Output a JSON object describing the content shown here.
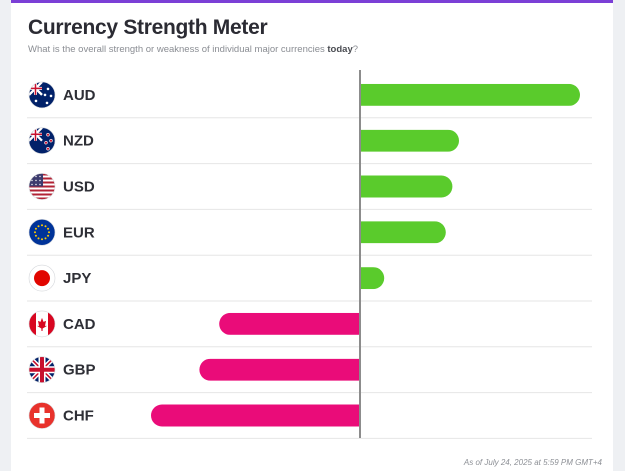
{
  "header": {
    "title": "Currency Strength Meter",
    "subtitle_prefix": "What is the overall strength or weakness of individual major currencies ",
    "subtitle_emphasis": "today",
    "subtitle_suffix": "?"
  },
  "footer": {
    "timestamp": "As of July 24, 2025 at 5:59 PM GMT+4"
  },
  "colors": {
    "positive": "#5acb2c",
    "negative": "#ea0c79",
    "axis": "#8c8c8c",
    "divider": "#e6e6e6"
  },
  "chart_data": {
    "type": "bar",
    "orientation": "horizontal",
    "categories": [
      "AUD",
      "NZD",
      "USD",
      "EUR",
      "JPY",
      "CAD",
      "GBP",
      "CHF"
    ],
    "flags": [
      "australia-flag-icon",
      "new-zealand-flag-icon",
      "usa-flag-icon",
      "eu-flag-icon",
      "japan-flag-icon",
      "canada-flag-icon",
      "uk-flag-icon",
      "switzerland-flag-icon"
    ],
    "values": [
      1.0,
      0.45,
      0.42,
      0.39,
      0.11,
      -0.64,
      -0.73,
      -0.95
    ],
    "xlim": [
      -1,
      1
    ],
    "grid": false,
    "legend": "none"
  }
}
